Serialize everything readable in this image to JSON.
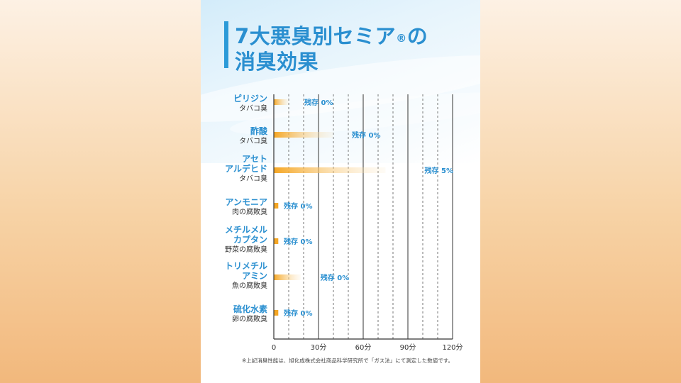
{
  "title": {
    "line1": "7大悪臭別セミア",
    "reg": "®",
    "line1_suffix": "の",
    "line2": "消臭効果"
  },
  "colors": {
    "accent": "#2a8fd0",
    "bar": "#f5a623",
    "bar_fade": "#fbe6c0",
    "text": "#333333"
  },
  "footnote": "※上記消臭性能は、旭化成株式会社商品科学研究所で「ガス法」にて測定した数値です。",
  "chart_data": {
    "type": "bar",
    "orientation": "horizontal",
    "xlabel": "",
    "ylabel": "",
    "xlim": [
      0,
      120
    ],
    "unit": "分",
    "tick_labels": [
      "0",
      "30分",
      "60分",
      "90分",
      "120分"
    ],
    "tick_values": [
      0,
      30,
      60,
      90,
      120
    ],
    "minor_ticks": [
      10,
      20,
      40,
      50,
      70,
      80,
      100,
      110
    ],
    "categories": [
      {
        "name_lines": [
          "ピリジン"
        ],
        "sub": "タバコ臭",
        "value": 10,
        "label": "残存 0%"
      },
      {
        "name_lines": [
          "酢酸"
        ],
        "sub": "タバコ臭",
        "value": 40,
        "label": "残存 0%"
      },
      {
        "name_lines": [
          "アセト",
          "アルデヒド"
        ],
        "sub": "タバコ臭",
        "value": 75,
        "label": "残存 5%"
      },
      {
        "name_lines": [
          "アンモニア"
        ],
        "sub": "肉の腐敗臭",
        "value": 3,
        "label": "残存 0%"
      },
      {
        "name_lines": [
          "メチルメル",
          "カプタン"
        ],
        "sub": "野菜の腐敗臭",
        "value": 3,
        "label": "残存 0%"
      },
      {
        "name_lines": [
          "トリメチル",
          "アミン"
        ],
        "sub": "魚の腐敗臭",
        "value": 18,
        "label": "残存 0%"
      },
      {
        "name_lines": [
          "硫化水素"
        ],
        "sub": "卵の腐敗臭",
        "value": 3,
        "label": "残存 0%"
      }
    ]
  }
}
